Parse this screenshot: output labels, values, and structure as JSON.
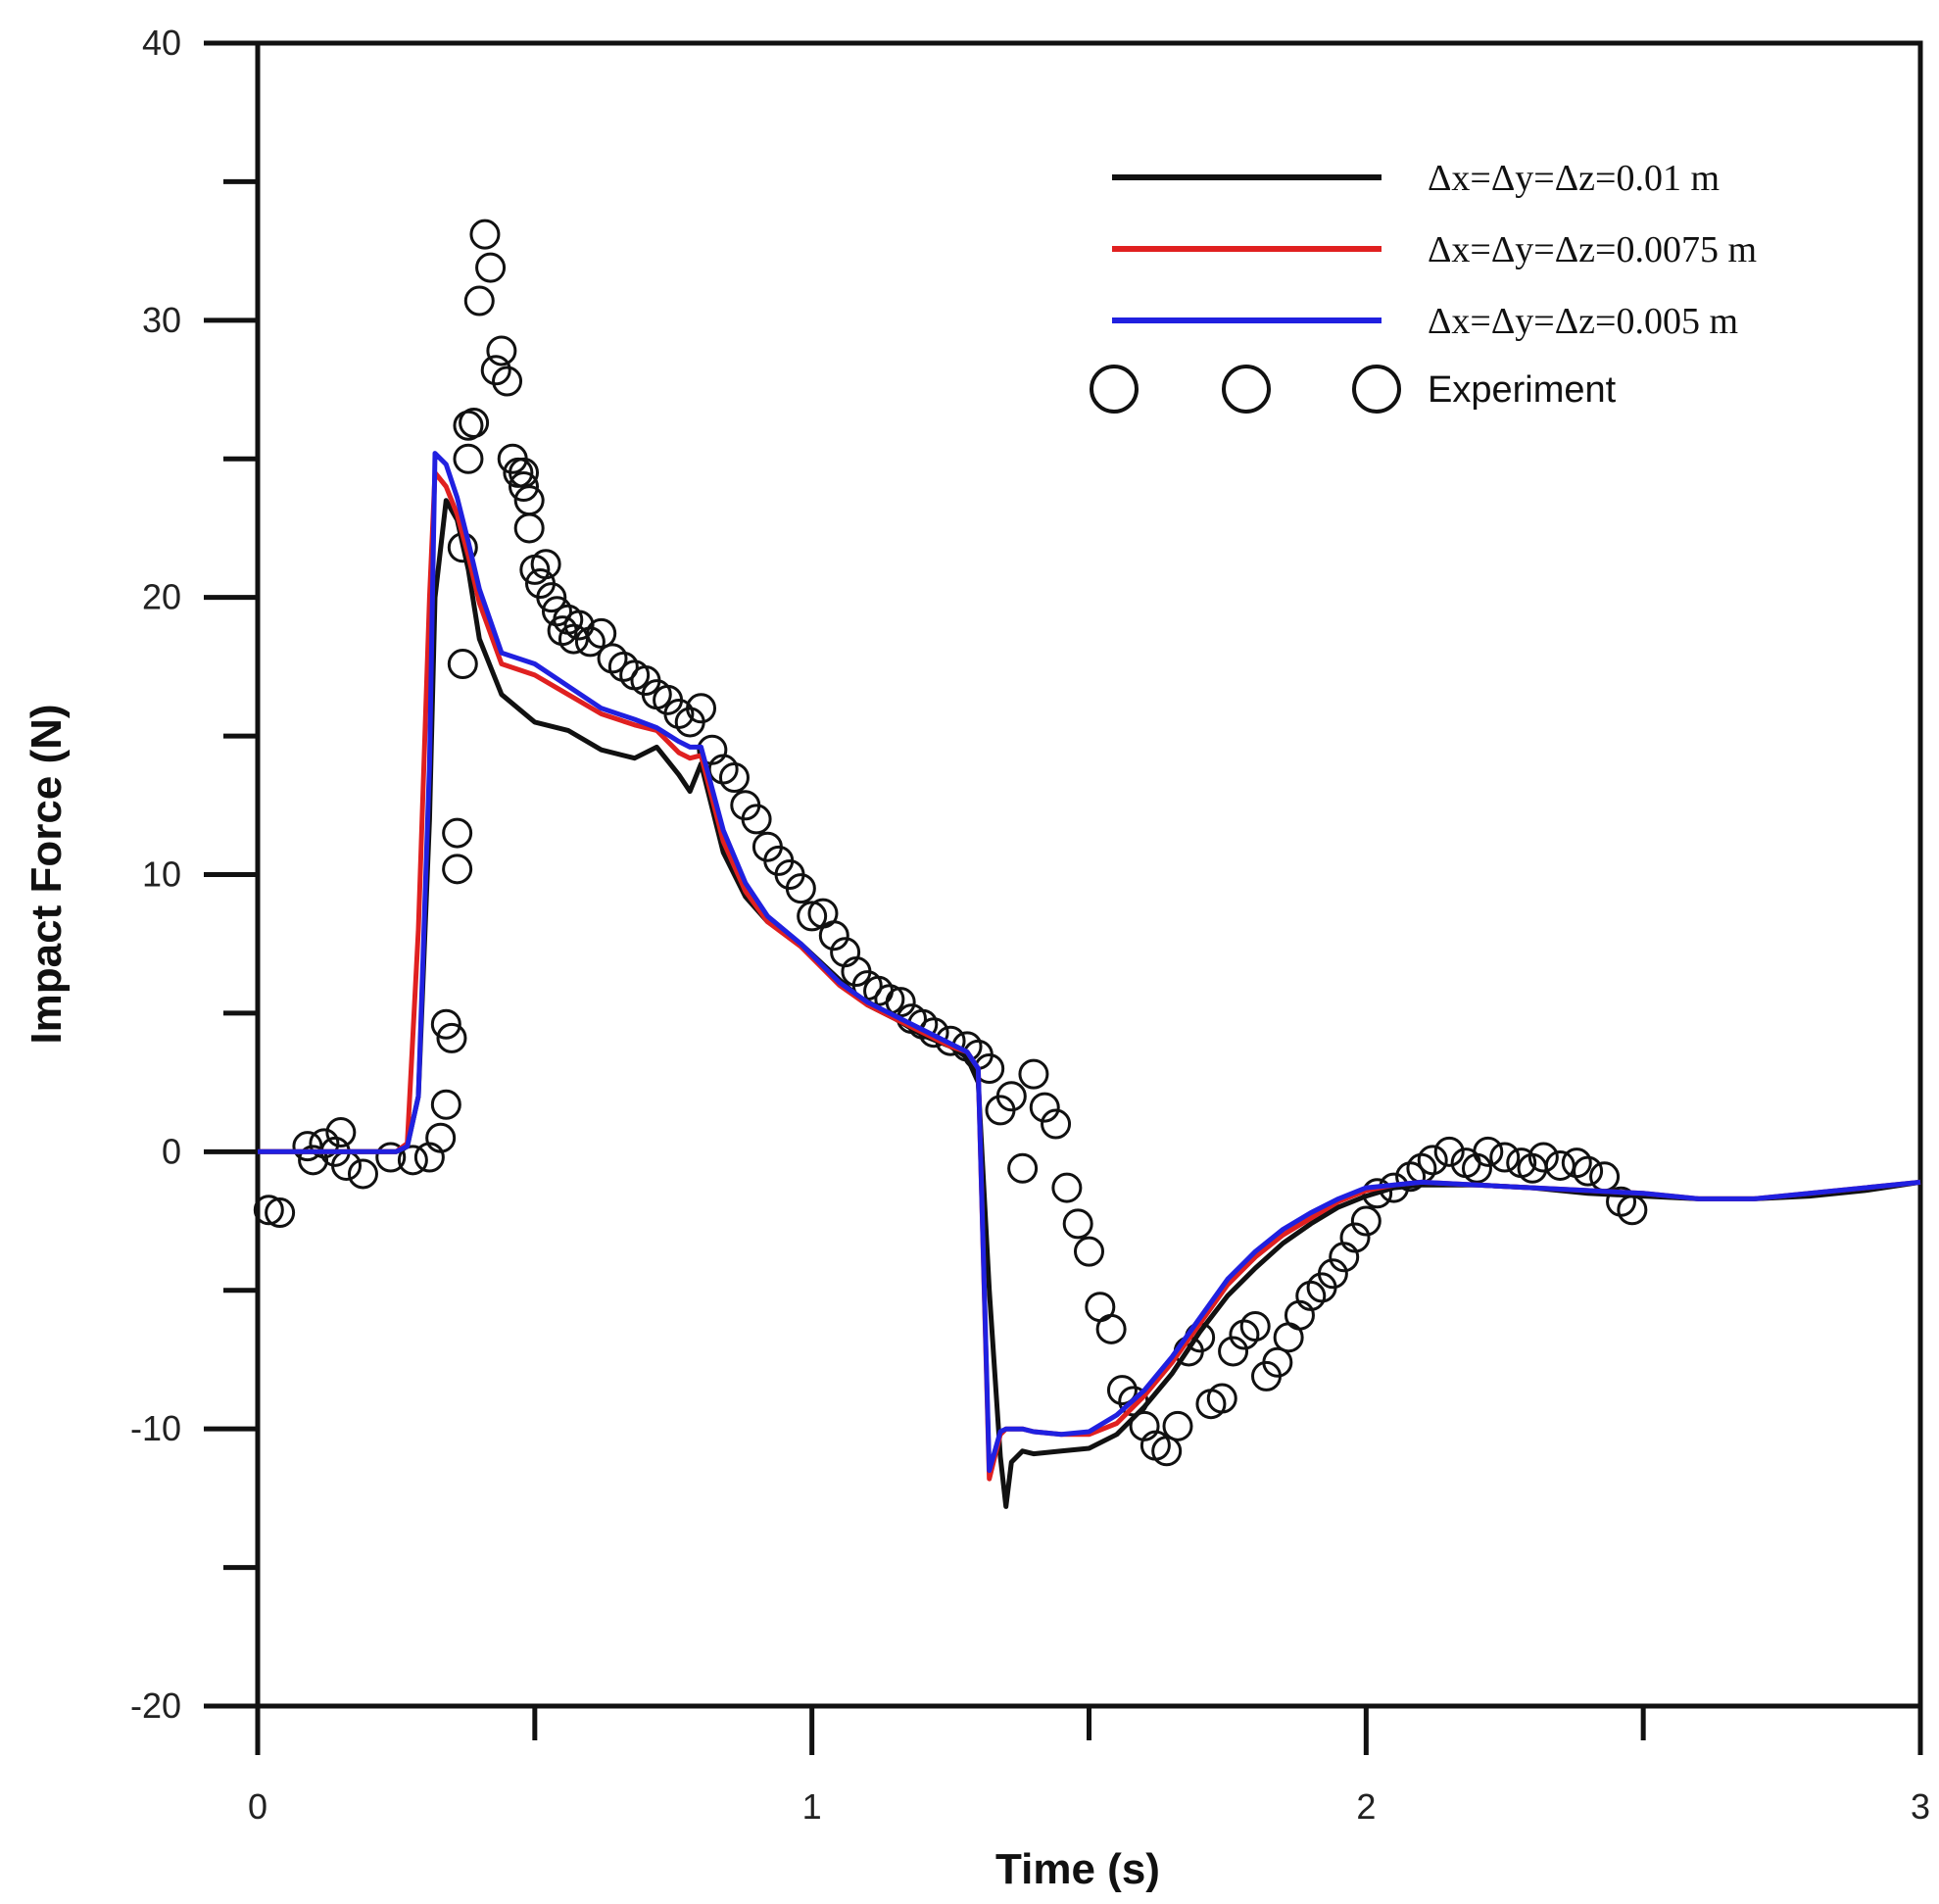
{
  "chart_data": {
    "type": "line",
    "xlabel": "Time (s)",
    "ylabel": "Impact Force (N)",
    "xlim": [
      0,
      3
    ],
    "ylim": [
      -20,
      40
    ],
    "xticks": [
      0,
      1,
      2,
      3
    ],
    "xtick_labels": [
      "0",
      "1",
      "2",
      "3"
    ],
    "yticks": [
      -20,
      -10,
      0,
      10,
      20,
      30,
      40
    ],
    "ytick_labels": [
      "-20",
      "-10",
      "0",
      "10",
      "20",
      "30",
      "40"
    ],
    "grid": false,
    "legend_position": "top-right",
    "series": [
      {
        "name": "Δx=Δy=Δz=0.01 m",
        "style": "line",
        "color": "#111111",
        "x": [
          0,
          0.25,
          0.27,
          0.29,
          0.31,
          0.32,
          0.34,
          0.36,
          0.38,
          0.4,
          0.44,
          0.5,
          0.56,
          0.62,
          0.68,
          0.72,
          0.76,
          0.78,
          0.8,
          0.84,
          0.88,
          0.92,
          0.98,
          1.05,
          1.1,
          1.15,
          1.2,
          1.25,
          1.28,
          1.3,
          1.32,
          1.34,
          1.35,
          1.36,
          1.38,
          1.4,
          1.45,
          1.5,
          1.55,
          1.6,
          1.65,
          1.7,
          1.75,
          1.8,
          1.85,
          1.9,
          1.95,
          2.0,
          2.05,
          2.1,
          2.2,
          2.3,
          2.4,
          2.5,
          2.6,
          2.7,
          2.8,
          2.9,
          3.0
        ],
        "y": [
          0,
          0,
          0.2,
          2,
          12,
          20,
          23.5,
          22.8,
          21,
          18.5,
          16.5,
          15.5,
          15.2,
          14.5,
          14.2,
          14.6,
          13.6,
          13,
          14,
          10.8,
          9.2,
          8.3,
          7.5,
          6.2,
          5.3,
          4.8,
          4.2,
          3.8,
          3.4,
          2.5,
          -5,
          -11,
          -12.8,
          -11.2,
          -10.8,
          -10.9,
          -10.8,
          -10.7,
          -10.2,
          -9.2,
          -8,
          -6.5,
          -5.2,
          -4.2,
          -3.3,
          -2.6,
          -2,
          -1.6,
          -1.3,
          -1.2,
          -1.2,
          -1.3,
          -1.5,
          -1.6,
          -1.7,
          -1.7,
          -1.6,
          -1.4,
          -1.1
        ]
      },
      {
        "name": "Δx=Δy=Δz=0.0075 m",
        "style": "line",
        "color": "#e02020",
        "x": [
          0,
          0.25,
          0.27,
          0.29,
          0.31,
          0.32,
          0.34,
          0.36,
          0.38,
          0.4,
          0.44,
          0.5,
          0.56,
          0.62,
          0.68,
          0.72,
          0.76,
          0.78,
          0.8,
          0.84,
          0.88,
          0.92,
          0.98,
          1.05,
          1.1,
          1.15,
          1.2,
          1.25,
          1.28,
          1.3,
          1.32,
          1.34,
          1.35,
          1.36,
          1.38,
          1.4,
          1.45,
          1.5,
          1.55,
          1.6,
          1.65,
          1.7,
          1.75,
          1.8,
          1.85,
          1.9,
          1.95,
          2.0,
          2.05,
          2.1,
          2.2,
          2.3,
          2.4,
          2.5,
          2.6,
          2.7,
          2.8,
          2.9,
          3.0
        ],
        "y": [
          0,
          0,
          0.3,
          8,
          20,
          24.5,
          24,
          23,
          21.5,
          19.8,
          17.6,
          17.2,
          16.5,
          15.8,
          15.4,
          15.2,
          14.4,
          14.2,
          14.3,
          11.2,
          9.4,
          8.3,
          7.4,
          6.0,
          5.3,
          4.8,
          4.3,
          3.8,
          3.6,
          3.0,
          -11.8,
          -10.2,
          -10,
          -10,
          -10,
          -10.1,
          -10.2,
          -10.2,
          -9.8,
          -8.8,
          -7.6,
          -6.2,
          -4.8,
          -3.8,
          -3.0,
          -2.4,
          -1.8,
          -1.4,
          -1.2,
          -1.1,
          -1.2,
          -1.3,
          -1.4,
          -1.5,
          -1.7,
          -1.7,
          -1.5,
          -1.3,
          -1.1
        ]
      },
      {
        "name": "Δx=Δy=Δz=0.005 m",
        "style": "line",
        "color": "#2020e0",
        "x": [
          0,
          0.25,
          0.27,
          0.29,
          0.31,
          0.32,
          0.34,
          0.36,
          0.38,
          0.4,
          0.44,
          0.5,
          0.56,
          0.62,
          0.68,
          0.72,
          0.76,
          0.78,
          0.8,
          0.84,
          0.88,
          0.92,
          0.98,
          1.05,
          1.1,
          1.15,
          1.2,
          1.25,
          1.28,
          1.3,
          1.32,
          1.34,
          1.35,
          1.36,
          1.38,
          1.4,
          1.45,
          1.5,
          1.55,
          1.6,
          1.65,
          1.7,
          1.75,
          1.8,
          1.85,
          1.9,
          1.95,
          2.0,
          2.05,
          2.1,
          2.2,
          2.3,
          2.4,
          2.5,
          2.6,
          2.7,
          2.8,
          2.9,
          3.0
        ],
        "y": [
          0,
          0,
          0.2,
          2,
          14,
          25.2,
          24.8,
          23.6,
          22,
          20.3,
          18,
          17.6,
          16.8,
          16,
          15.6,
          15.3,
          14.8,
          14.6,
          14.6,
          11.6,
          9.7,
          8.5,
          7.5,
          6.1,
          5.4,
          4.9,
          4.4,
          3.9,
          3.6,
          3.0,
          -11.5,
          -10.1,
          -10,
          -10,
          -10,
          -10.1,
          -10.2,
          -10.1,
          -9.5,
          -8.6,
          -7.4,
          -6,
          -4.6,
          -3.6,
          -2.8,
          -2.2,
          -1.7,
          -1.3,
          -1.2,
          -1.1,
          -1.2,
          -1.3,
          -1.4,
          -1.5,
          -1.7,
          -1.7,
          -1.5,
          -1.3,
          -1.1
        ]
      },
      {
        "name": "Experiment",
        "style": "marker",
        "color": "#111111",
        "x": [
          0.02,
          0.04,
          0.09,
          0.1,
          0.12,
          0.14,
          0.15,
          0.16,
          0.19,
          0.24,
          0.28,
          0.31,
          0.33,
          0.34,
          0.34,
          0.35,
          0.36,
          0.36,
          0.37,
          0.37,
          0.38,
          0.38,
          0.39,
          0.4,
          0.41,
          0.42,
          0.43,
          0.44,
          0.45,
          0.46,
          0.47,
          0.48,
          0.48,
          0.49,
          0.49,
          0.5,
          0.51,
          0.52,
          0.53,
          0.54,
          0.55,
          0.56,
          0.57,
          0.58,
          0.6,
          0.62,
          0.64,
          0.66,
          0.68,
          0.7,
          0.72,
          0.74,
          0.76,
          0.78,
          0.8,
          0.82,
          0.84,
          0.86,
          0.88,
          0.9,
          0.92,
          0.94,
          0.96,
          0.98,
          1.0,
          1.02,
          1.04,
          1.06,
          1.08,
          1.1,
          1.12,
          1.14,
          1.16,
          1.18,
          1.2,
          1.22,
          1.25,
          1.28,
          1.3,
          1.32,
          1.34,
          1.36,
          1.38,
          1.4,
          1.42,
          1.44,
          1.46,
          1.48,
          1.5,
          1.52,
          1.54,
          1.56,
          1.58,
          1.6,
          1.62,
          1.64,
          1.66,
          1.68,
          1.7,
          1.72,
          1.74,
          1.76,
          1.78,
          1.8,
          1.82,
          1.84,
          1.86,
          1.88,
          1.9,
          1.92,
          1.94,
          1.96,
          1.98,
          2.0,
          2.02,
          2.05,
          2.08,
          2.1,
          2.12,
          2.15,
          2.18,
          2.2,
          2.22,
          2.25,
          2.28,
          2.3,
          2.32,
          2.35,
          2.38,
          2.4,
          2.43,
          2.46,
          2.48
        ],
        "y": [
          -2.1,
          -2.2,
          0.2,
          -0.3,
          0.3,
          0,
          0.7,
          -0.5,
          -0.8,
          -0.2,
          -0.3,
          -0.2,
          0.5,
          1.7,
          4.6,
          4.1,
          10.2,
          11.5,
          17.6,
          21.8,
          25,
          26.2,
          26.3,
          30.7,
          33.1,
          31.9,
          28.2,
          28.9,
          27.8,
          25,
          24.5,
          24.5,
          24,
          22.5,
          23.5,
          21,
          20.5,
          21.2,
          20,
          19.5,
          18.8,
          19.2,
          18.5,
          19,
          18.4,
          18.7,
          17.8,
          17.5,
          17.2,
          17,
          16.5,
          16.3,
          15.8,
          15.5,
          16,
          14.5,
          13.8,
          13.5,
          12.5,
          12,
          11,
          10.5,
          10,
          9.5,
          8.5,
          8.6,
          7.8,
          7.2,
          6.5,
          6,
          5.8,
          5.5,
          5.4,
          4.8,
          4.6,
          4.3,
          4.0,
          3.8,
          3.5,
          3.0,
          1.5,
          2.0,
          -0.6,
          2.8,
          1.6,
          1.0,
          -1.3,
          -2.6,
          -3.6,
          -5.6,
          -6.4,
          -8.6,
          -9.0,
          -9.9,
          -10.6,
          -10.8,
          -9.9,
          -7.2,
          -6.7,
          -9.1,
          -8.9,
          -7.2,
          -6.6,
          -6.3,
          -8.1,
          -7.6,
          -6.7,
          -5.9,
          -5.2,
          -4.9,
          -4.4,
          -3.8,
          -3.1,
          -2.5,
          -1.5,
          -1.3,
          -0.9,
          -0.6,
          -0.3,
          0,
          -0.4,
          -0.6,
          0,
          -0.2,
          -0.4,
          -0.6,
          -0.2,
          -0.5,
          -0.4,
          -0.7,
          -0.9,
          -1.8,
          -2.1
        ]
      }
    ]
  }
}
